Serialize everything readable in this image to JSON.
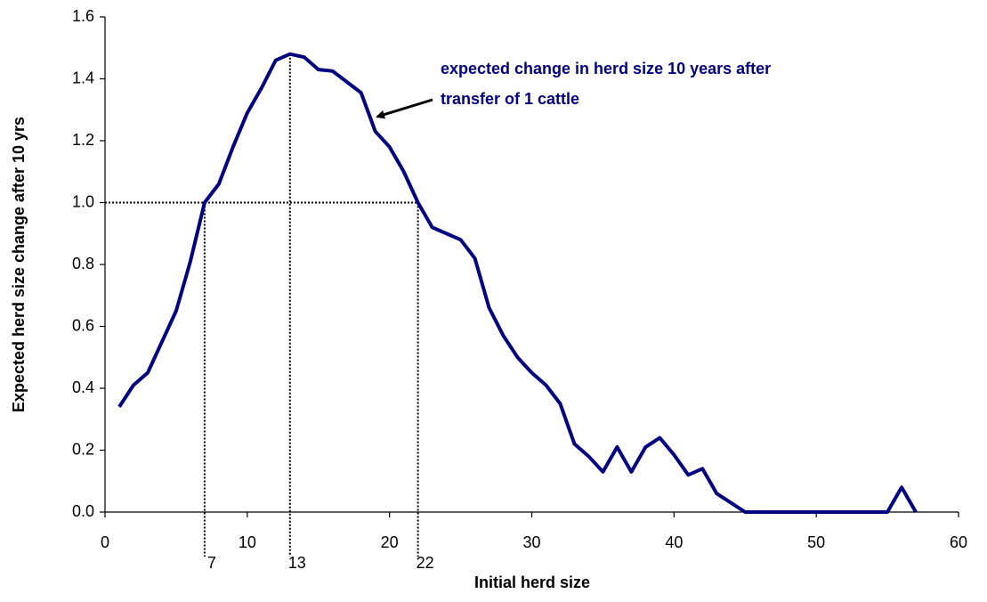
{
  "chart_data": {
    "type": "line",
    "x_label": "Initial herd size",
    "y_label": "Expected herd size change after 10 yrs",
    "annotation": [
      "expected change in herd size 10 years after",
      "transfer of 1 cattle"
    ],
    "x": [
      1,
      2,
      3,
      4,
      5,
      6,
      7,
      8,
      9,
      10,
      11,
      12,
      13,
      14,
      15,
      16,
      17,
      18,
      19,
      20,
      21,
      22,
      23,
      24,
      25,
      26,
      27,
      28,
      29,
      30,
      31,
      32,
      33,
      34,
      35,
      36,
      37,
      38,
      39,
      40,
      41,
      42,
      43,
      44,
      45,
      46,
      47,
      48,
      49,
      50,
      51,
      52,
      53,
      54,
      55,
      56,
      57
    ],
    "series": [
      {
        "color": "#000080",
        "values": [
          0.34,
          0.41,
          0.45,
          0.55,
          0.65,
          0.81,
          1.0,
          1.06,
          1.18,
          1.29,
          1.37,
          1.46,
          1.48,
          1.47,
          1.43,
          1.425,
          1.39,
          1.355,
          1.23,
          1.18,
          1.1,
          1.0,
          0.92,
          0.9,
          0.88,
          0.82,
          0.66,
          0.57,
          0.5,
          0.45,
          0.41,
          0.35,
          0.22,
          0.18,
          0.13,
          0.21,
          0.13,
          0.21,
          0.24,
          0.185,
          0.12,
          0.14,
          0.06,
          0.03,
          0,
          0,
          0,
          0,
          0,
          0,
          0,
          0,
          0,
          0,
          0,
          0.08,
          0
        ]
      }
    ],
    "reference_y": 1.0,
    "markers": [
      7,
      13,
      22
    ],
    "xlim": [
      0,
      60
    ],
    "xticks": [
      0,
      10,
      20,
      30,
      40,
      50,
      60
    ],
    "ylim": [
      0,
      1.6
    ],
    "yticks": [
      {
        "value": 0,
        "label": "0.0"
      },
      0.2,
      0.4,
      0.6,
      0.8,
      {
        "value": 1,
        "label": "1.0"
      },
      1.2,
      1.4,
      1.6
    ]
  }
}
